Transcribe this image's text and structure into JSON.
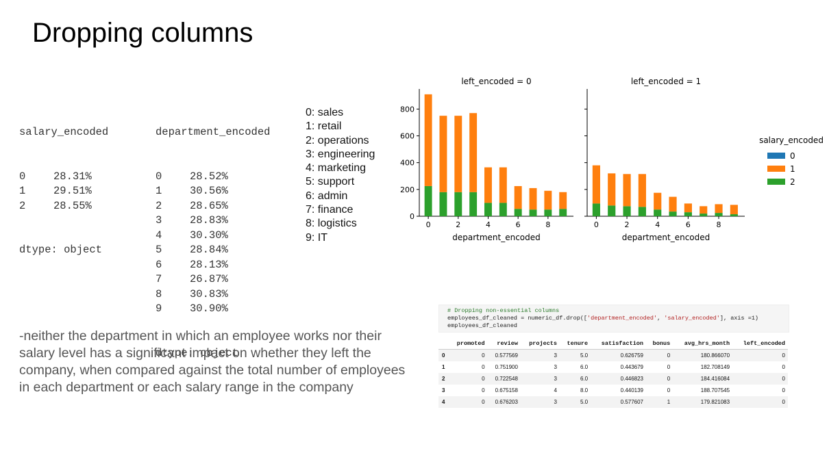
{
  "slide": {
    "title": "Dropping columns",
    "paragraph": "-neither the department in which an employee works nor their salary level has a significant impact on whether they left the company, when compared against the total number of employees in each department or each salary range in the company"
  },
  "salary_output": {
    "header": "salary_encoded",
    "rows": [
      [
        "0",
        "28.31%"
      ],
      [
        "1",
        "29.51%"
      ],
      [
        "2",
        "28.55%"
      ]
    ],
    "dtype": "dtype: object"
  },
  "department_output": {
    "header": "department_encoded",
    "rows": [
      [
        "0",
        "28.52%"
      ],
      [
        "1",
        "30.56%"
      ],
      [
        "2",
        "28.65%"
      ],
      [
        "3",
        "28.83%"
      ],
      [
        "4",
        "30.30%"
      ],
      [
        "5",
        "28.84%"
      ],
      [
        "6",
        "28.13%"
      ],
      [
        "7",
        "26.87%"
      ],
      [
        "8",
        "30.83%"
      ],
      [
        "9",
        "30.90%"
      ]
    ],
    "dtype": "dtype: object"
  },
  "department_legend": [
    "0: sales",
    "1: retail",
    "2: operations",
    "3: engineering",
    "4: marketing",
    "5: support",
    "6: admin",
    "7: finance",
    "8: logistics",
    "9: IT"
  ],
  "chart_data": [
    {
      "type": "bar",
      "stacked": true,
      "title": "left_encoded = 0",
      "xlabel": "department_encoded",
      "ylabel": "",
      "x": [
        0,
        1,
        2,
        3,
        4,
        5,
        6,
        7,
        8,
        9
      ],
      "xticks": [
        0,
        2,
        4,
        6,
        8
      ],
      "yticks": [
        0,
        200,
        400,
        600,
        800
      ],
      "ylim": [
        0,
        950
      ],
      "series": [
        {
          "name": "0",
          "color": "#1f77b4",
          "values": [
            0,
            0,
            0,
            0,
            0,
            0,
            0,
            0,
            0,
            0
          ]
        },
        {
          "name": "1",
          "color": "#ff7f0e",
          "values": [
            685,
            570,
            570,
            590,
            265,
            265,
            170,
            160,
            140,
            125
          ]
        },
        {
          "name": "2",
          "color": "#2ca02c",
          "values": [
            225,
            180,
            180,
            180,
            100,
            100,
            55,
            50,
            50,
            55
          ]
        }
      ]
    },
    {
      "type": "bar",
      "stacked": true,
      "title": "left_encoded = 1",
      "xlabel": "department_encoded",
      "ylabel": "",
      "x": [
        0,
        1,
        2,
        3,
        4,
        5,
        6,
        7,
        8,
        9
      ],
      "xticks": [
        0,
        2,
        4,
        6,
        8
      ],
      "ylim": [
        0,
        950
      ],
      "series": [
        {
          "name": "0",
          "color": "#1f77b4",
          "values": [
            0,
            0,
            0,
            0,
            0,
            0,
            0,
            0,
            0,
            0
          ]
        },
        {
          "name": "1",
          "color": "#ff7f0e",
          "values": [
            285,
            240,
            240,
            245,
            125,
            110,
            65,
            55,
            65,
            70
          ]
        },
        {
          "name": "2",
          "color": "#2ca02c",
          "values": [
            95,
            80,
            75,
            70,
            50,
            35,
            30,
            20,
            25,
            15
          ]
        }
      ]
    }
  ],
  "chart_legend": {
    "title": "salary_encoded",
    "items": [
      "0",
      "1",
      "2"
    ]
  },
  "code": {
    "comment": "# Dropping non-essential columns",
    "line2_pre": "employees_df_cleaned = numeric_df.drop([",
    "str1": "'department_encoded'",
    "sep": ", ",
    "str2": "'salary_encoded'",
    "line2_post": "], axis =1)",
    "line3": "employees_df_cleaned"
  },
  "dataframe": {
    "columns": [
      "promoted",
      "review",
      "projects",
      "tenure",
      "satisfaction",
      "bonus",
      "avg_hrs_month",
      "left_encoded"
    ],
    "rows": [
      {
        "index": "0",
        "values": [
          "0",
          "0.577569",
          "3",
          "5.0",
          "0.626759",
          "0",
          "180.866070",
          "0"
        ]
      },
      {
        "index": "1",
        "values": [
          "0",
          "0.751900",
          "3",
          "6.0",
          "0.443679",
          "0",
          "182.708149",
          "0"
        ]
      },
      {
        "index": "2",
        "values": [
          "0",
          "0.722548",
          "3",
          "6.0",
          "0.446823",
          "0",
          "184.416084",
          "0"
        ]
      },
      {
        "index": "3",
        "values": [
          "0",
          "0.675158",
          "4",
          "8.0",
          "0.440139",
          "0",
          "188.707545",
          "0"
        ]
      },
      {
        "index": "4",
        "values": [
          "0",
          "0.676203",
          "3",
          "5.0",
          "0.577607",
          "1",
          "179.821083",
          "0"
        ]
      }
    ]
  }
}
